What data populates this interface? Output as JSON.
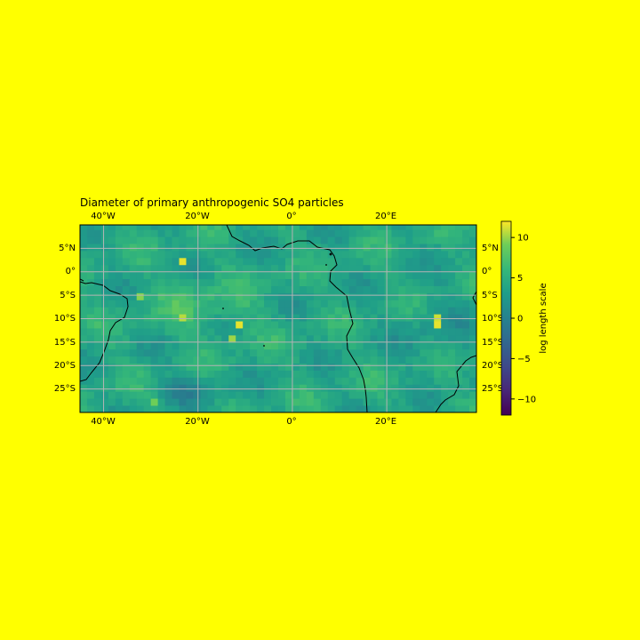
{
  "background_color": "#ffff00",
  "map": {
    "title": "Diameter of primary anthropogenic SO4 particles",
    "projection": "PlateCarree",
    "extent": {
      "lon": [
        -45,
        39
      ],
      "lat": [
        -30,
        10
      ]
    },
    "gridlines": true,
    "lon_ticks": [
      {
        "value": -40,
        "label": "40°W"
      },
      {
        "value": -20,
        "label": "20°W"
      },
      {
        "value": 0,
        "label": "0°"
      },
      {
        "value": 20,
        "label": "20°E"
      }
    ],
    "lat_ticks": [
      {
        "value": 5,
        "label": "5°N"
      },
      {
        "value": 0,
        "label": "0°"
      },
      {
        "value": -5,
        "label": "5°S"
      },
      {
        "value": -10,
        "label": "10°S"
      },
      {
        "value": -15,
        "label": "15°S"
      },
      {
        "value": -20,
        "label": "20°S"
      },
      {
        "value": -25,
        "label": "25°S"
      }
    ],
    "colormap": "viridis",
    "grid_resolution_deg": 1.5,
    "field_base_value": 4,
    "hotspots": [
      {
        "lon": -23.25,
        "lat": 2.25,
        "value": 11.5
      },
      {
        "lon": -23.25,
        "lat": -9.75,
        "value": 10.5
      },
      {
        "lon": -11.25,
        "lat": -11.25,
        "value": 11.5
      },
      {
        "lon": -12.75,
        "lat": -14.25,
        "value": 10.0
      },
      {
        "lon": -32.25,
        "lat": -5.25,
        "value": 9.5
      },
      {
        "lon": -29.25,
        "lat": -27.75,
        "value": 9.0
      },
      {
        "lon": 30.75,
        "lat": -9.75,
        "value": 11.0
      },
      {
        "lon": 30.75,
        "lat": -11.25,
        "value": 11.5
      }
    ]
  },
  "colorbar": {
    "label": "log length scale",
    "range": [
      -12,
      12
    ],
    "ticks": [
      {
        "value": 10,
        "label": "10"
      },
      {
        "value": 5,
        "label": "5"
      },
      {
        "value": 0,
        "label": "0"
      },
      {
        "value": -5,
        "label": "−5"
      },
      {
        "value": -10,
        "label": "−10"
      }
    ]
  }
}
